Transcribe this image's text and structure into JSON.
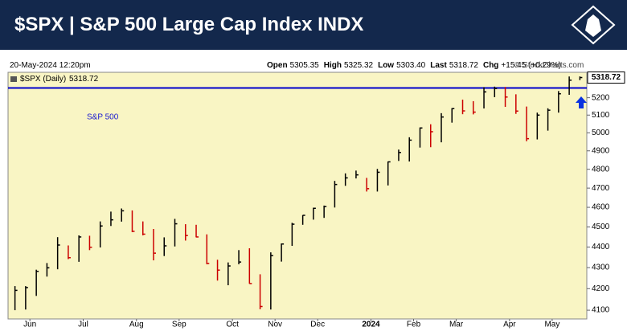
{
  "header": {
    "title": "$SPX | S&P 500 Large Cap Index INDX"
  },
  "info": {
    "date": "20-May-2024 12:20pm",
    "quote": [
      {
        "label": "Open",
        "value": "5305.35"
      },
      {
        "label": "High",
        "value": "5325.32"
      },
      {
        "label": "Low",
        "value": "5303.40"
      },
      {
        "label": "Last",
        "value": "5318.72"
      },
      {
        "label": "Chg",
        "value": "+15.45 (+0.29%)"
      }
    ],
    "copyright": "© StockCharts.com"
  },
  "chart_data": {
    "type": "hlc",
    "series_name": "$SPX (Daily)",
    "annotation": "S&P 500",
    "log_scale": true,
    "grid": false,
    "up_color": "#000000",
    "down_color": "#cc0000",
    "hline": 5257,
    "hline_color": "#0000cc",
    "categories": [
      null,
      null,
      "Jun",
      null,
      null,
      null,
      null,
      "Jul",
      null,
      null,
      null,
      null,
      "Aug",
      null,
      null,
      null,
      "Sep",
      null,
      null,
      null,
      null,
      "Oct",
      null,
      null,
      null,
      "Nov",
      null,
      null,
      null,
      "Dec",
      null,
      null,
      null,
      null,
      "2024",
      null,
      null,
      null,
      "Feb",
      null,
      null,
      null,
      "Mar",
      null,
      null,
      null,
      null,
      "Apr",
      null,
      null,
      null,
      "May",
      null,
      null
    ],
    "high": [
      4212,
      4212,
      4290,
      4322,
      4449,
      4408,
      4458,
      4456,
      4528,
      4578,
      4594,
      4584,
      4528,
      4490,
      4448,
      4541,
      4514,
      4511,
      4463,
      4338,
      4325,
      4385,
      4394,
      4268,
      4374,
      4418,
      4521,
      4560,
      4598,
      4609,
      4738,
      4778,
      4793,
      4754,
      4802,
      4842,
      4907,
      4975,
      5030,
      5048,
      5111,
      5140,
      5189,
      5180,
      5262,
      5265,
      5263,
      5220,
      5149,
      5114,
      5139,
      5239,
      5325,
      5325.32
    ],
    "low": [
      4100,
      4103,
      4166,
      4257,
      4292,
      4341,
      4328,
      4385,
      4398,
      4505,
      4527,
      4474,
      4458,
      4335,
      4356,
      4403,
      4432,
      4448,
      4316,
      4238,
      4216,
      4316,
      4223,
      4104,
      4103,
      4329,
      4406,
      4511,
      4537,
      4546,
      4599,
      4712,
      4751,
      4682,
      4682,
      4714,
      4845,
      4842,
      4918,
      4920,
      4947,
      5057,
      5105,
      5104,
      5138,
      5203,
      5147,
      5107,
      4953,
      4963,
      5012,
      5114,
      5217,
      5303.4
    ],
    "close": [
      4192,
      4205,
      4282,
      4299,
      4410,
      4348,
      4450,
      4399,
      4505,
      4536,
      4582,
      4478,
      4464,
      4370,
      4406,
      4516,
      4457,
      4450,
      4320,
      4288,
      4308,
      4327,
      4224,
      4117,
      4358,
      4415,
      4514,
      4559,
      4595,
      4604,
      4719,
      4754,
      4770,
      4697,
      4784,
      4840,
      4891,
      4959,
      5027,
      5006,
      5089,
      5137,
      5124,
      5117,
      5234,
      5254,
      5204,
      5123,
      4967,
      5100,
      5128,
      5223,
      5303,
      5318.72
    ],
    "ylim": [
      4060,
      5350
    ],
    "yticks": [
      4100,
      4200,
      4300,
      4400,
      4500,
      4600,
      4700,
      4800,
      4900,
      5000,
      5100,
      5200
    ]
  }
}
